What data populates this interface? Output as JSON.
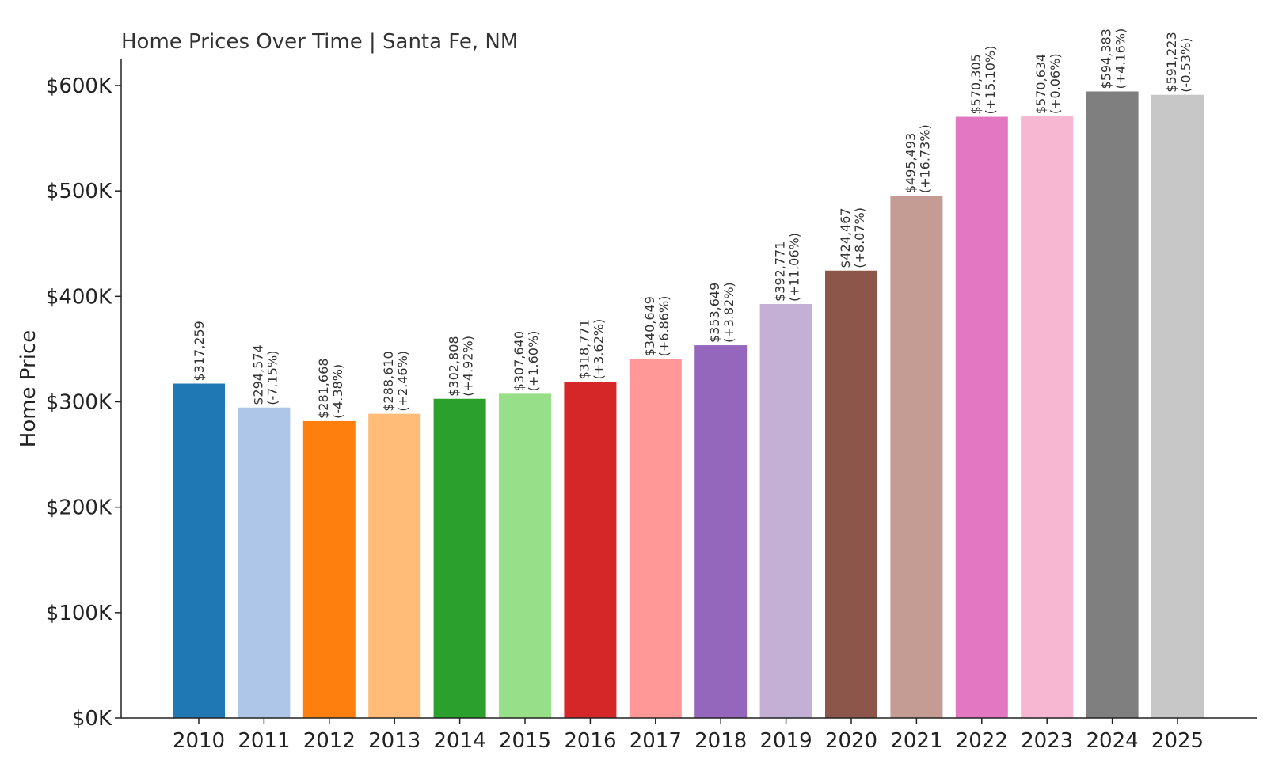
{
  "chart_data": {
    "type": "bar",
    "title": "Home Prices Over Time | Santa Fe, NM",
    "xlabel": "",
    "ylabel": "Home Price",
    "ylim": [
      0,
      625000
    ],
    "yticks": [
      0,
      100000,
      200000,
      300000,
      400000,
      500000,
      600000
    ],
    "ytick_labels": [
      "$0K",
      "$100K",
      "$200K",
      "$300K",
      "$400K",
      "$500K",
      "$600K"
    ],
    "grid": false,
    "legend": "none",
    "categories": [
      "2010",
      "2011",
      "2012",
      "2013",
      "2014",
      "2015",
      "2016",
      "2017",
      "2018",
      "2019",
      "2020",
      "2021",
      "2022",
      "2023",
      "2024",
      "2025"
    ],
    "values": [
      317259,
      294574,
      281668,
      288610,
      302808,
      307640,
      318771,
      340649,
      353649,
      392771,
      424467,
      495493,
      570305,
      570634,
      594383,
      591223
    ],
    "value_labels": [
      "$317,259",
      "$294,574",
      "$281,668",
      "$288,610",
      "$302,808",
      "$307,640",
      "$318,771",
      "$340,649",
      "$353,649",
      "$392,771",
      "$424,467",
      "$495,493",
      "$570,305",
      "$570,634",
      "$594,383",
      "$591,223"
    ],
    "change_labels": [
      "",
      "(-7.15%)",
      "(-4.38%)",
      "(+2.46%)",
      "(+4.92%)",
      "(+1.60%)",
      "(+3.62%)",
      "(+6.86%)",
      "(+3.82%)",
      "(+11.06%)",
      "(+8.07%)",
      "(+16.73%)",
      "(+15.10%)",
      "(+0.06%)",
      "(+4.16%)",
      "(-0.53%)"
    ],
    "colors": [
      "#1f77b4",
      "#aec7e8",
      "#ff7f0e",
      "#ffbb78",
      "#2ca02c",
      "#98df8a",
      "#d62728",
      "#ff9896",
      "#9467bd",
      "#c5b0d5",
      "#8c564b",
      "#c49c94",
      "#e377c2",
      "#f7b6d2",
      "#7f7f7f",
      "#c7c7c7"
    ]
  }
}
